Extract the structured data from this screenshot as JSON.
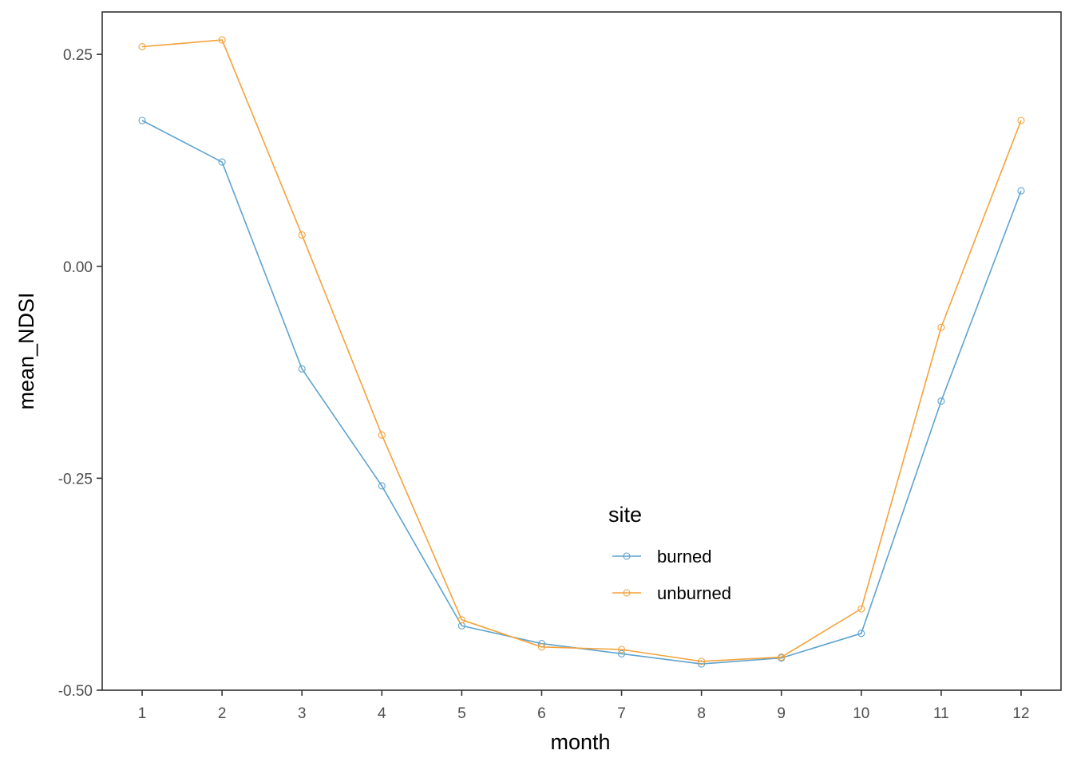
{
  "chart_data": {
    "type": "line",
    "xlabel": "month",
    "ylabel": "mean_NDSI",
    "x": [
      1,
      2,
      3,
      4,
      5,
      6,
      7,
      8,
      9,
      10,
      11,
      12
    ],
    "x_tick_labels": [
      "1",
      "2",
      "3",
      "4",
      "5",
      "6",
      "7",
      "8",
      "9",
      "10",
      "11",
      "12"
    ],
    "y_ticks": [
      0.25,
      0.0,
      -0.25,
      -0.5
    ],
    "y_tick_labels": [
      "0.25",
      "0.00",
      "-0.25",
      "-0.50"
    ],
    "xlim": [
      0.5,
      12.5
    ],
    "ylim": [
      -0.5,
      0.3
    ],
    "grid": false,
    "legend": {
      "title": "site",
      "position": "inside-bottom-center"
    },
    "series": [
      {
        "name": "burned",
        "color": "#5ea3cf",
        "values": [
          0.172,
          0.123,
          -0.121,
          -0.259,
          -0.424,
          -0.445,
          -0.457,
          -0.469,
          -0.462,
          -0.433,
          -0.159,
          0.089
        ]
      },
      {
        "name": "unburned",
        "color": "#f5a23a",
        "values": [
          0.259,
          0.267,
          0.037,
          -0.199,
          -0.417,
          -0.449,
          -0.452,
          -0.466,
          -0.461,
          -0.404,
          -0.072,
          0.172
        ]
      }
    ]
  }
}
